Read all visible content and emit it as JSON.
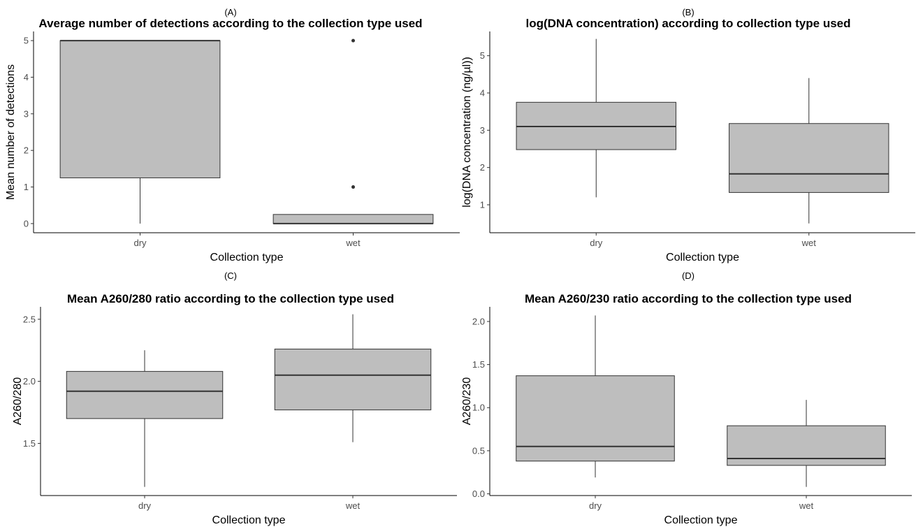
{
  "chart_data": [
    {
      "type": "box",
      "panel_label": "(A)",
      "title": "Average number of detections according to the collection type used",
      "xlabel": "Collection type",
      "ylabel": "Mean number of detections",
      "ylim": [
        -0.25,
        5.25
      ],
      "yticks": [
        0,
        1,
        2,
        3,
        4,
        5
      ],
      "ytick_labels": [
        "0",
        "1",
        "2",
        "3",
        "4",
        "5"
      ],
      "categories": [
        "dry",
        "wet"
      ],
      "boxes": [
        {
          "category": "dry",
          "whisker_low": 0,
          "q1": 1.25,
          "median": 5,
          "q3": 5,
          "whisker_high": 5,
          "outliers": []
        },
        {
          "category": "wet",
          "whisker_low": 0,
          "q1": 0,
          "median": 0,
          "q3": 0.25,
          "whisker_high": 0.25,
          "outliers": [
            1,
            5
          ]
        }
      ],
      "grid": false
    },
    {
      "type": "box",
      "panel_label": "(B)",
      "title": "log(DNA concentration) according to collection type used",
      "xlabel": "Collection type",
      "ylabel": "log(DNA concentration (ng/µl))",
      "ylim": [
        0.25,
        5.65
      ],
      "yticks": [
        1,
        2,
        3,
        4,
        5
      ],
      "ytick_labels": [
        "1",
        "2",
        "3",
        "4",
        "5"
      ],
      "categories": [
        "dry",
        "wet"
      ],
      "boxes": [
        {
          "category": "dry",
          "whisker_low": 1.2,
          "q1": 2.48,
          "median": 3.1,
          "q3": 3.75,
          "whisker_high": 5.45,
          "outliers": []
        },
        {
          "category": "wet",
          "whisker_low": 0.5,
          "q1": 1.33,
          "median": 1.83,
          "q3": 3.18,
          "whisker_high": 4.4,
          "outliers": []
        }
      ],
      "grid": false
    },
    {
      "type": "box",
      "panel_label": "(C)",
      "title": "Mean A260/280 ratio according to the collection type used",
      "xlabel": "Collection type",
      "ylabel": "A260/280",
      "ylim": [
        1.08,
        2.6
      ],
      "yticks": [
        1.5,
        2.0,
        2.5
      ],
      "ytick_labels": [
        "1.5",
        "2.0",
        "2.5"
      ],
      "categories": [
        "dry",
        "wet"
      ],
      "boxes": [
        {
          "category": "dry",
          "whisker_low": 1.15,
          "q1": 1.7,
          "median": 1.92,
          "q3": 2.08,
          "whisker_high": 2.25,
          "outliers": []
        },
        {
          "category": "wet",
          "whisker_low": 1.51,
          "q1": 1.77,
          "median": 2.05,
          "q3": 2.26,
          "whisker_high": 2.54,
          "outliers": []
        }
      ],
      "grid": false
    },
    {
      "type": "box",
      "panel_label": "(D)",
      "title": "Mean A260/230 ratio according to the collection type used",
      "xlabel": "Collection type",
      "ylabel": "A260/230",
      "ylim": [
        -0.02,
        2.17
      ],
      "yticks": [
        0.0,
        0.5,
        1.0,
        1.5,
        2.0
      ],
      "ytick_labels": [
        "0.0",
        "0.5",
        "1.0",
        "1.5",
        "2.0"
      ],
      "categories": [
        "dry",
        "wet"
      ],
      "boxes": [
        {
          "category": "dry",
          "whisker_low": 0.19,
          "q1": 0.38,
          "median": 0.55,
          "q3": 1.37,
          "whisker_high": 2.07,
          "outliers": []
        },
        {
          "category": "wet",
          "whisker_low": 0.08,
          "q1": 0.33,
          "median": 0.41,
          "q3": 0.79,
          "whisker_high": 1.09,
          "outliers": []
        }
      ],
      "grid": false
    }
  ]
}
